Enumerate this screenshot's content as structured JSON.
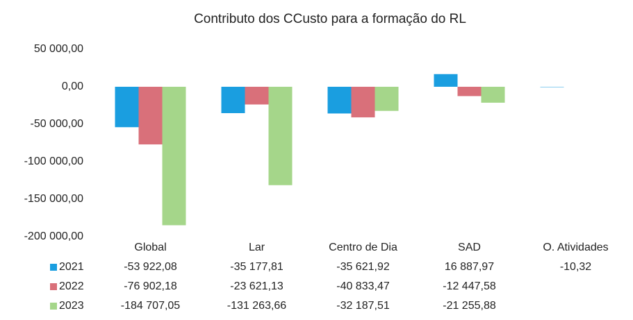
{
  "chart_data": {
    "type": "bar",
    "title": "Contributo dos CCusto para a formação do RL",
    "categories": [
      "Global",
      "Lar",
      "Centro de Dia",
      "SAD",
      "O. Atividades"
    ],
    "series": [
      {
        "name": "2021",
        "color": "#1a9ee0",
        "values": [
          -53922.08,
          -35177.81,
          -35621.92,
          16887.97,
          -10.32
        ],
        "value_labels": [
          "-53 922,08",
          "-35 177,81",
          "-35 621,92",
          "16 887,97",
          "-10,32"
        ]
      },
      {
        "name": "2022",
        "color": "#d9707a",
        "values": [
          -76902.18,
          -23621.13,
          -40833.47,
          -12447.58,
          null
        ],
        "value_labels": [
          "-76 902,18",
          "-23 621,13",
          "-40 833,47",
          "-12 447,58",
          null
        ]
      },
      {
        "name": "2023",
        "color": "#a5d68a",
        "values": [
          -184707.05,
          -131263.66,
          -32187.51,
          -21255.88,
          null
        ],
        "value_labels": [
          "-184 707,05",
          "-131 263,66",
          "-32 187,51",
          "-21 255,88",
          null
        ]
      }
    ],
    "ylim": [
      -200000,
      50000
    ],
    "yticks": [
      {
        "value": 50000,
        "label": "50 000,00"
      },
      {
        "value": 0,
        "label": "0,00"
      },
      {
        "value": -50000,
        "label": "-50 000,00"
      },
      {
        "value": -100000,
        "label": "-100 000,00"
      },
      {
        "value": -150000,
        "label": "-150 000,00"
      },
      {
        "value": -200000,
        "label": "-200 000,00"
      }
    ],
    "grid": false
  }
}
